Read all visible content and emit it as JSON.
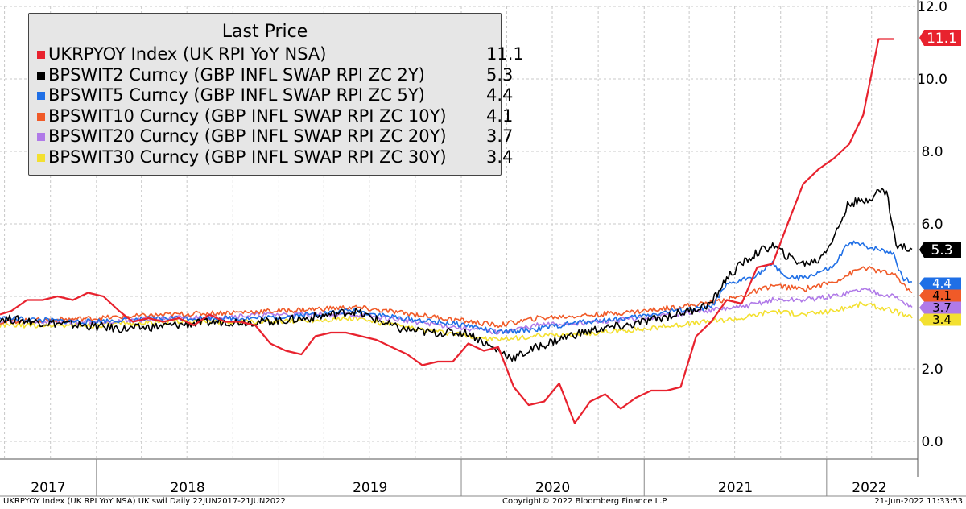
{
  "chart_data": {
    "type": "line",
    "legend_title": "Last Price",
    "legend_position": "top-left",
    "grid": true,
    "ylim": [
      0,
      12
    ],
    "y_ticks": [
      "0.0",
      "2.0",
      "4.0",
      "6.0",
      "8.0",
      "10.0",
      "12.0"
    ],
    "x_range": [
      "2017-06-22",
      "2022-06-21"
    ],
    "x_year_labels": [
      "2017",
      "2018",
      "2019",
      "2020",
      "2021",
      "2022"
    ],
    "series": [
      {
        "name": "UKRPYOY Index (UK RPI YoY NSA)",
        "last": "11.1",
        "color": "#e8222e",
        "points": [
          [
            "2017-06-22",
            3.5
          ],
          [
            "2017-07-15",
            3.6
          ],
          [
            "2017-08-15",
            3.9
          ],
          [
            "2017-09-15",
            3.9
          ],
          [
            "2017-10-15",
            4.0
          ],
          [
            "2017-11-15",
            3.9
          ],
          [
            "2017-12-15",
            4.1
          ],
          [
            "2018-01-15",
            4.0
          ],
          [
            "2018-02-15",
            3.6
          ],
          [
            "2018-03-15",
            3.3
          ],
          [
            "2018-04-15",
            3.4
          ],
          [
            "2018-05-15",
            3.3
          ],
          [
            "2018-06-15",
            3.4
          ],
          [
            "2018-07-15",
            3.2
          ],
          [
            "2018-08-15",
            3.5
          ],
          [
            "2018-09-15",
            3.3
          ],
          [
            "2018-10-15",
            3.3
          ],
          [
            "2018-11-15",
            3.2
          ],
          [
            "2018-12-15",
            2.7
          ],
          [
            "2019-01-15",
            2.5
          ],
          [
            "2019-02-15",
            2.4
          ],
          [
            "2019-03-15",
            2.9
          ],
          [
            "2019-04-15",
            3.0
          ],
          [
            "2019-05-15",
            3.0
          ],
          [
            "2019-06-15",
            2.9
          ],
          [
            "2019-07-15",
            2.8
          ],
          [
            "2019-08-15",
            2.6
          ],
          [
            "2019-09-15",
            2.4
          ],
          [
            "2019-10-15",
            2.1
          ],
          [
            "2019-11-15",
            2.2
          ],
          [
            "2019-12-15",
            2.2
          ],
          [
            "2020-01-15",
            2.7
          ],
          [
            "2020-02-15",
            2.5
          ],
          [
            "2020-03-15",
            2.6
          ],
          [
            "2020-04-15",
            1.5
          ],
          [
            "2020-05-15",
            1.0
          ],
          [
            "2020-06-15",
            1.1
          ],
          [
            "2020-07-15",
            1.6
          ],
          [
            "2020-08-15",
            0.5
          ],
          [
            "2020-09-15",
            1.1
          ],
          [
            "2020-10-15",
            1.3
          ],
          [
            "2020-11-15",
            0.9
          ],
          [
            "2020-12-15",
            1.2
          ],
          [
            "2021-01-15",
            1.4
          ],
          [
            "2021-02-15",
            1.4
          ],
          [
            "2021-03-15",
            1.5
          ],
          [
            "2021-04-15",
            2.9
          ],
          [
            "2021-05-15",
            3.3
          ],
          [
            "2021-06-15",
            3.9
          ],
          [
            "2021-07-15",
            3.8
          ],
          [
            "2021-08-15",
            4.8
          ],
          [
            "2021-09-15",
            4.9
          ],
          [
            "2021-10-15",
            6.0
          ],
          [
            "2021-11-15",
            7.1
          ],
          [
            "2021-12-15",
            7.5
          ],
          [
            "2022-01-15",
            7.8
          ],
          [
            "2022-02-15",
            8.2
          ],
          [
            "2022-03-15",
            9.0
          ],
          [
            "2022-04-15",
            11.1
          ],
          [
            "2022-05-15",
            11.1
          ]
        ]
      },
      {
        "name": "BPSWIT2 Curncy (GBP INFL SWAP RPI ZC 2Y)",
        "last": "5.3",
        "color": "#000000",
        "points": [
          [
            "2017-06-22",
            3.4
          ],
          [
            "2017-09-01",
            3.3
          ],
          [
            "2017-12-01",
            3.2
          ],
          [
            "2018-03-01",
            3.1
          ],
          [
            "2018-06-01",
            3.2
          ],
          [
            "2018-09-01",
            3.3
          ],
          [
            "2018-12-01",
            3.3
          ],
          [
            "2019-03-01",
            3.4
          ],
          [
            "2019-06-01",
            3.6
          ],
          [
            "2019-09-01",
            3.1
          ],
          [
            "2019-11-01",
            3.0
          ],
          [
            "2020-01-15",
            3.0
          ],
          [
            "2020-03-01",
            2.6
          ],
          [
            "2020-04-15",
            2.3
          ],
          [
            "2020-06-01",
            2.6
          ],
          [
            "2020-08-01",
            2.9
          ],
          [
            "2020-10-01",
            3.1
          ],
          [
            "2020-12-01",
            3.2
          ],
          [
            "2021-02-01",
            3.4
          ],
          [
            "2021-04-01",
            3.6
          ],
          [
            "2021-05-15",
            3.8
          ],
          [
            "2021-06-15",
            4.5
          ],
          [
            "2021-07-15",
            4.9
          ],
          [
            "2021-08-15",
            5.2
          ],
          [
            "2021-09-15",
            5.4
          ],
          [
            "2021-10-15",
            5.1
          ],
          [
            "2021-11-15",
            4.9
          ],
          [
            "2021-12-15",
            5.0
          ],
          [
            "2022-01-15",
            5.6
          ],
          [
            "2022-02-15",
            6.6
          ],
          [
            "2022-03-15",
            6.6
          ],
          [
            "2022-04-15",
            6.9
          ],
          [
            "2022-05-01",
            6.9
          ],
          [
            "2022-05-20",
            5.4
          ],
          [
            "2022-06-21",
            5.3
          ]
        ]
      },
      {
        "name": "BPSWIT5 Curncy (GBP INFL SWAP RPI ZC 5Y)",
        "last": "4.4",
        "color": "#1f6fe6",
        "points": [
          [
            "2017-06-22",
            3.4
          ],
          [
            "2017-12-01",
            3.3
          ],
          [
            "2018-06-01",
            3.4
          ],
          [
            "2018-12-01",
            3.4
          ],
          [
            "2019-06-01",
            3.6
          ],
          [
            "2019-09-01",
            3.4
          ],
          [
            "2020-01-15",
            3.2
          ],
          [
            "2020-03-15",
            3.0
          ],
          [
            "2020-06-01",
            3.1
          ],
          [
            "2020-09-01",
            3.3
          ],
          [
            "2020-12-01",
            3.4
          ],
          [
            "2021-03-01",
            3.6
          ],
          [
            "2021-05-15",
            3.7
          ],
          [
            "2021-06-15",
            4.3
          ],
          [
            "2021-08-15",
            4.6
          ],
          [
            "2021-09-15",
            4.9
          ],
          [
            "2021-10-15",
            4.5
          ],
          [
            "2021-11-15",
            4.5
          ],
          [
            "2022-01-15",
            4.8
          ],
          [
            "2022-02-15",
            5.5
          ],
          [
            "2022-03-15",
            5.4
          ],
          [
            "2022-04-15",
            5.3
          ],
          [
            "2022-05-15",
            5.2
          ],
          [
            "2022-06-01",
            4.5
          ],
          [
            "2022-06-21",
            4.4
          ]
        ]
      },
      {
        "name": "BPSWIT10 Curncy (GBP INFL SWAP RPI ZC 10Y)",
        "last": "4.1",
        "color": "#f05a28",
        "points": [
          [
            "2017-06-22",
            3.3
          ],
          [
            "2018-01-01",
            3.4
          ],
          [
            "2018-06-01",
            3.5
          ],
          [
            "2019-01-01",
            3.6
          ],
          [
            "2019-06-01",
            3.7
          ],
          [
            "2019-10-01",
            3.5
          ],
          [
            "2020-03-15",
            3.2
          ],
          [
            "2020-06-01",
            3.4
          ],
          [
            "2020-10-01",
            3.5
          ],
          [
            "2021-01-01",
            3.6
          ],
          [
            "2021-05-01",
            3.8
          ],
          [
            "2021-07-15",
            4.0
          ],
          [
            "2021-09-15",
            4.3
          ],
          [
            "2021-11-15",
            4.2
          ],
          [
            "2022-01-15",
            4.4
          ],
          [
            "2022-03-15",
            4.8
          ],
          [
            "2022-05-15",
            4.6
          ],
          [
            "2022-06-21",
            4.1
          ]
        ]
      },
      {
        "name": "BPSWIT20 Curncy (GBP INFL SWAP RPI ZC 20Y)",
        "last": "3.7",
        "color": "#b07ae8",
        "points": [
          [
            "2017-06-22",
            3.3
          ],
          [
            "2018-01-01",
            3.3
          ],
          [
            "2018-06-01",
            3.4
          ],
          [
            "2019-01-01",
            3.5
          ],
          [
            "2019-06-01",
            3.5
          ],
          [
            "2019-10-01",
            3.3
          ],
          [
            "2020-03-15",
            3.0
          ],
          [
            "2020-06-01",
            3.2
          ],
          [
            "2020-10-01",
            3.3
          ],
          [
            "2021-01-01",
            3.4
          ],
          [
            "2021-05-01",
            3.6
          ],
          [
            "2021-07-15",
            3.7
          ],
          [
            "2021-09-15",
            3.9
          ],
          [
            "2021-11-15",
            3.9
          ],
          [
            "2022-01-15",
            4.0
          ],
          [
            "2022-03-15",
            4.2
          ],
          [
            "2022-05-15",
            4.0
          ],
          [
            "2022-06-21",
            3.7
          ]
        ]
      },
      {
        "name": "BPSWIT30 Curncy (GBP INFL SWAP RPI ZC 30Y)",
        "last": "3.4",
        "color": "#f3e030",
        "points": [
          [
            "2017-06-22",
            3.2
          ],
          [
            "2018-01-01",
            3.2
          ],
          [
            "2018-06-01",
            3.3
          ],
          [
            "2019-01-01",
            3.3
          ],
          [
            "2019-06-01",
            3.4
          ],
          [
            "2019-10-01",
            3.1
          ],
          [
            "2020-03-15",
            2.8
          ],
          [
            "2020-06-01",
            2.9
          ],
          [
            "2020-10-01",
            3.0
          ],
          [
            "2021-01-01",
            3.1
          ],
          [
            "2021-05-01",
            3.3
          ],
          [
            "2021-07-15",
            3.4
          ],
          [
            "2021-09-15",
            3.6
          ],
          [
            "2021-11-15",
            3.5
          ],
          [
            "2022-01-15",
            3.6
          ],
          [
            "2022-03-15",
            3.8
          ],
          [
            "2022-05-15",
            3.6
          ],
          [
            "2022-06-21",
            3.4
          ]
        ]
      }
    ]
  },
  "footer": {
    "left": "UKRPYOY Index (UK RPI YoY NSA) UK swil  Daily 22JUN2017-21JUN2022",
    "center": "Copyright© 2022 Bloomberg Finance L.P.",
    "right": "21-Jun-2022 11:33:53"
  }
}
